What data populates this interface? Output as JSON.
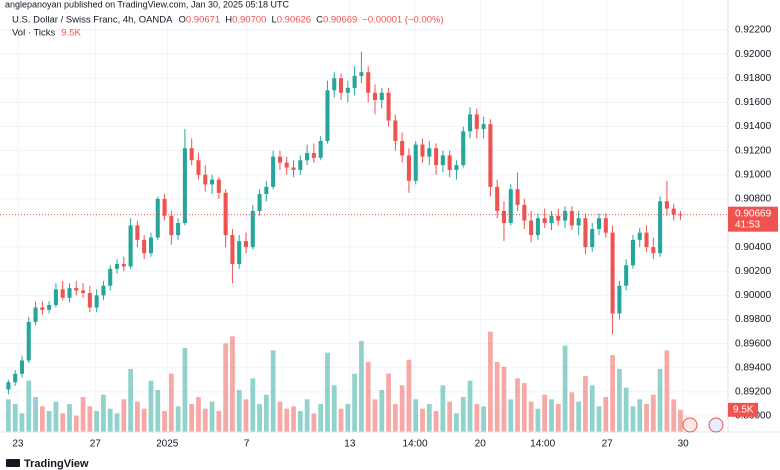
{
  "header": "anglepanoyan published on TradingView.com, Jan 30, 2025 05:18 UTC",
  "footer": "TradingView",
  "chart_data": {
    "type": "candlestick",
    "title": "U.S. Dollar / Swiss Franc, 4h, OANDA",
    "legend": [
      {
        "key": "O",
        "value": "0.90671"
      },
      {
        "key": "H",
        "value": "0.90700"
      },
      {
        "key": "L",
        "value": "0.90626"
      },
      {
        "key": "C",
        "value": "0.90669"
      }
    ],
    "change": "−0.00001 (−0.00%)",
    "volume_title": "Vol · Ticks",
    "volume_last_label": "9.5K",
    "up_color": "#26a69a",
    "down_color": "#ef5350",
    "grid": true,
    "xlim": [
      -0.5,
      106
    ],
    "xticks": [
      {
        "value": 1.4,
        "label": "23"
      },
      {
        "value": 12.8,
        "label": "27"
      },
      {
        "value": 23.4,
        "label": "2025"
      },
      {
        "value": 35.1,
        "label": "7"
      },
      {
        "value": 50.3,
        "label": "13"
      },
      {
        "value": 59.9,
        "label": "14:00"
      },
      {
        "value": 69.5,
        "label": "20"
      },
      {
        "value": 78.7,
        "label": "14:00"
      },
      {
        "value": 88.2,
        "label": "27"
      },
      {
        "value": 99.4,
        "label": "30"
      }
    ],
    "ylim": [
      0.89,
      0.922
    ],
    "yticks": [
      {
        "value": 0.922,
        "label": "0.92200"
      },
      {
        "value": 0.92,
        "label": "0.92000"
      },
      {
        "value": 0.918,
        "label": "0.91800"
      },
      {
        "value": 0.916,
        "label": "0.91600"
      },
      {
        "value": 0.914,
        "label": "0.91400"
      },
      {
        "value": 0.912,
        "label": "0.91200"
      },
      {
        "value": 0.91,
        "label": "0.91000"
      },
      {
        "value": 0.908,
        "label": "0.90800"
      },
      {
        "value": 0.904,
        "label": "0.90400"
      },
      {
        "value": 0.902,
        "label": "0.90200"
      },
      {
        "value": 0.9,
        "label": "0.90000"
      },
      {
        "value": 0.898,
        "label": "0.89800"
      },
      {
        "value": 0.896,
        "label": "0.89600"
      },
      {
        "value": 0.894,
        "label": "0.89400"
      },
      {
        "value": 0.892,
        "label": "0.89200"
      },
      {
        "value": 0.89,
        "label": "0.89000"
      }
    ],
    "last_price": {
      "value": 0.90669,
      "label": "0.90669"
    },
    "countdown": "41:53",
    "volume_ylim": [
      0,
      45000
    ],
    "candles": [
      [
        0.8922,
        0.893,
        0.8918,
        0.8928
      ],
      [
        0.8928,
        0.8938,
        0.8925,
        0.8935
      ],
      [
        0.8935,
        0.895,
        0.8932,
        0.8946
      ],
      [
        0.8946,
        0.8982,
        0.8944,
        0.8978
      ],
      [
        0.8978,
        0.8995,
        0.8975,
        0.899
      ],
      [
        0.899,
        0.8995,
        0.8984,
        0.8988
      ],
      [
        0.8988,
        0.8995,
        0.8985,
        0.8992
      ],
      [
        0.8992,
        0.901,
        0.899,
        0.9005
      ],
      [
        0.9005,
        0.9012,
        0.8996,
        0.8998
      ],
      [
        0.8998,
        0.901,
        0.8994,
        0.9006
      ],
      [
        0.9006,
        0.9012,
        0.9,
        0.9004
      ],
      [
        0.9004,
        0.901,
        0.8998,
        0.9002
      ],
      [
        0.9002,
        0.9008,
        0.8986,
        0.899
      ],
      [
        0.899,
        0.9005,
        0.8986,
        0.9
      ],
      [
        0.9,
        0.9012,
        0.8996,
        0.9008
      ],
      [
        0.9008,
        0.9025,
        0.9004,
        0.9022
      ],
      [
        0.9022,
        0.903,
        0.9018,
        0.9026
      ],
      [
        0.9026,
        0.9032,
        0.902,
        0.9024
      ],
      [
        0.9024,
        0.9064,
        0.9022,
        0.9058
      ],
      [
        0.9058,
        0.9062,
        0.904,
        0.9046
      ],
      [
        0.9046,
        0.905,
        0.903,
        0.9035
      ],
      [
        0.9035,
        0.9052,
        0.9032,
        0.9048
      ],
      [
        0.9048,
        0.9082,
        0.9046,
        0.908
      ],
      [
        0.908,
        0.9084,
        0.9062,
        0.9066
      ],
      [
        0.9066,
        0.907,
        0.9042,
        0.905
      ],
      [
        0.905,
        0.9064,
        0.9046,
        0.906
      ],
      [
        0.906,
        0.9138,
        0.9058,
        0.9122
      ],
      [
        0.9122,
        0.913,
        0.9108,
        0.9112
      ],
      [
        0.9112,
        0.9118,
        0.9096,
        0.91
      ],
      [
        0.91,
        0.9108,
        0.9086,
        0.9092
      ],
      [
        0.9092,
        0.91,
        0.9084,
        0.9096
      ],
      [
        0.9096,
        0.9098,
        0.908,
        0.9085
      ],
      [
        0.9085,
        0.9088,
        0.904,
        0.905
      ],
      [
        0.905,
        0.9055,
        0.901,
        0.9026
      ],
      [
        0.9026,
        0.905,
        0.9022,
        0.9045
      ],
      [
        0.9045,
        0.9052,
        0.9035,
        0.904
      ],
      [
        0.904,
        0.9075,
        0.9038,
        0.907
      ],
      [
        0.907,
        0.9088,
        0.9066,
        0.9084
      ],
      [
        0.9084,
        0.9095,
        0.9078,
        0.909
      ],
      [
        0.909,
        0.912,
        0.9088,
        0.9115
      ],
      [
        0.9115,
        0.912,
        0.9104,
        0.911
      ],
      [
        0.911,
        0.9115,
        0.91,
        0.9106
      ],
      [
        0.9106,
        0.9112,
        0.9098,
        0.9104
      ],
      [
        0.9104,
        0.9116,
        0.91,
        0.9112
      ],
      [
        0.9112,
        0.9125,
        0.9108,
        0.9118
      ],
      [
        0.9118,
        0.9126,
        0.911,
        0.9114
      ],
      [
        0.9114,
        0.9132,
        0.9112,
        0.9128
      ],
      [
        0.9128,
        0.9178,
        0.9126,
        0.917
      ],
      [
        0.917,
        0.9185,
        0.9164,
        0.918
      ],
      [
        0.918,
        0.9184,
        0.9162,
        0.9168
      ],
      [
        0.9168,
        0.9178,
        0.916,
        0.9172
      ],
      [
        0.9172,
        0.919,
        0.9166,
        0.9182
      ],
      [
        0.9182,
        0.9202,
        0.9176,
        0.9185
      ],
      [
        0.9185,
        0.919,
        0.916,
        0.9168
      ],
      [
        0.9168,
        0.9175,
        0.915,
        0.9162
      ],
      [
        0.9162,
        0.9172,
        0.9155,
        0.9168
      ],
      [
        0.9168,
        0.9172,
        0.914,
        0.9145
      ],
      [
        0.9145,
        0.915,
        0.912,
        0.9128
      ],
      [
        0.9128,
        0.9135,
        0.911,
        0.9116
      ],
      [
        0.9116,
        0.9122,
        0.9085,
        0.9095
      ],
      [
        0.9095,
        0.9128,
        0.9092,
        0.9125
      ],
      [
        0.9125,
        0.913,
        0.911,
        0.9115
      ],
      [
        0.9115,
        0.9128,
        0.9108,
        0.9122
      ],
      [
        0.9122,
        0.9126,
        0.91,
        0.9108
      ],
      [
        0.9108,
        0.912,
        0.9102,
        0.9116
      ],
      [
        0.9116,
        0.912,
        0.9098,
        0.9104
      ],
      [
        0.9104,
        0.9112,
        0.9096,
        0.9108
      ],
      [
        0.9108,
        0.914,
        0.9106,
        0.9136
      ],
      [
        0.9136,
        0.9156,
        0.913,
        0.915
      ],
      [
        0.915,
        0.9155,
        0.913,
        0.9138
      ],
      [
        0.9138,
        0.9148,
        0.913,
        0.9142
      ],
      [
        0.9142,
        0.9146,
        0.9082,
        0.909
      ],
      [
        0.909,
        0.9096,
        0.9064,
        0.907
      ],
      [
        0.907,
        0.9078,
        0.9045,
        0.906
      ],
      [
        0.906,
        0.9092,
        0.9058,
        0.9088
      ],
      [
        0.9088,
        0.9102,
        0.907,
        0.9075
      ],
      [
        0.9075,
        0.908,
        0.9055,
        0.9062
      ],
      [
        0.9062,
        0.907,
        0.9044,
        0.905
      ],
      [
        0.905,
        0.9068,
        0.9046,
        0.9064
      ],
      [
        0.9064,
        0.9072,
        0.9056,
        0.906
      ],
      [
        0.906,
        0.907,
        0.9054,
        0.9066
      ],
      [
        0.9066,
        0.9072,
        0.9058,
        0.9062
      ],
      [
        0.9062,
        0.9074,
        0.9056,
        0.907
      ],
      [
        0.907,
        0.9074,
        0.9054,
        0.9058
      ],
      [
        0.9058,
        0.907,
        0.905,
        0.9064
      ],
      [
        0.9064,
        0.9068,
        0.9034,
        0.904
      ],
      [
        0.904,
        0.906,
        0.9036,
        0.9055
      ],
      [
        0.9055,
        0.9068,
        0.905,
        0.9064
      ],
      [
        0.9064,
        0.9068,
        0.9048,
        0.9052
      ],
      [
        0.9052,
        0.9058,
        0.8968,
        0.8985
      ],
      [
        0.8985,
        0.9012,
        0.898,
        0.9008
      ],
      [
        0.9008,
        0.903,
        0.9004,
        0.9025
      ],
      [
        0.9025,
        0.905,
        0.9022,
        0.9046
      ],
      [
        0.9046,
        0.9056,
        0.904,
        0.9052
      ],
      [
        0.9052,
        0.9058,
        0.9036,
        0.904
      ],
      [
        0.904,
        0.9048,
        0.903,
        0.9035
      ],
      [
        0.9035,
        0.9082,
        0.9032,
        0.9078
      ],
      [
        0.9078,
        0.9095,
        0.9066,
        0.9072
      ],
      [
        0.9072,
        0.9076,
        0.9062,
        0.9067
      ],
      [
        0.90671,
        0.907,
        0.90626,
        0.90669
      ]
    ],
    "volume": [
      14000,
      12000,
      8000,
      22000,
      15000,
      11000,
      9000,
      13000,
      8000,
      12000,
      7000,
      15000,
      11000,
      9000,
      16000,
      10000,
      8000,
      14000,
      27000,
      13000,
      10000,
      22000,
      18000,
      9000,
      25000,
      11000,
      36000,
      12000,
      15000,
      10000,
      13000,
      9000,
      38000,
      41000,
      18000,
      14000,
      23000,
      12000,
      16000,
      35000,
      13000,
      10000,
      11000,
      9000,
      14000,
      8000,
      12000,
      34000,
      20000,
      10000,
      12000,
      25000,
      39000,
      30000,
      14000,
      18000,
      25000,
      12000,
      20000,
      31000,
      14000,
      10000,
      12000,
      9000,
      20000,
      13000,
      8000,
      15000,
      22000,
      12000,
      11000,
      43000,
      30000,
      28000,
      14000,
      23000,
      21000,
      13000,
      10000,
      16000,
      14000,
      12000,
      37000,
      17000,
      13000,
      24000,
      20000,
      11000,
      15000,
      33000,
      27000,
      19000,
      11000,
      14000,
      12000,
      16000,
      27000,
      35000,
      14000,
      9500
    ]
  }
}
